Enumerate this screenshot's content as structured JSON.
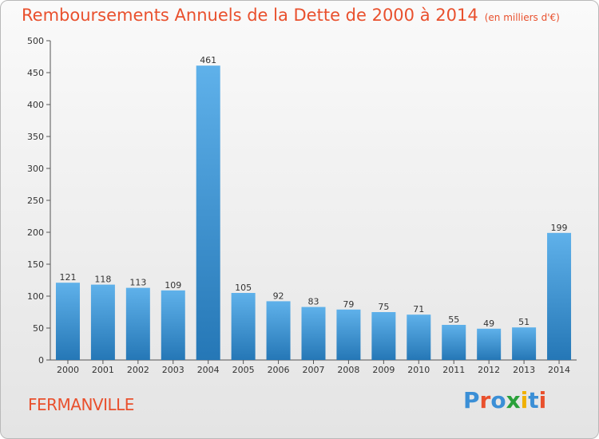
{
  "title": "Remboursements Annuels de la Dette de 2000 à 2014",
  "subtitle": "(en milliers d'€)",
  "commune": "FERMANVILLE",
  "logo_text": "Proxiti",
  "logo_colors": [
    "#3b8fd6",
    "#e9502d",
    "#3b8fd6",
    "#2aa13a",
    "#f0b000",
    "#3b8fd6",
    "#e9502d"
  ],
  "colors": {
    "title": "#e9502d",
    "bar_light": "#5fb1ea",
    "bar_dark": "#2577b6",
    "axis": "#555555"
  },
  "chart_data": {
    "type": "bar",
    "title": "Remboursements Annuels de la Dette de 2000 à 2014",
    "subtitle": "(en milliers d'€)",
    "categories": [
      "2000",
      "2001",
      "2002",
      "2003",
      "2004",
      "2005",
      "2006",
      "2007",
      "2008",
      "2009",
      "2010",
      "2011",
      "2012",
      "2013",
      "2014"
    ],
    "values": [
      121,
      118,
      113,
      109,
      461,
      105,
      92,
      83,
      79,
      75,
      71,
      55,
      49,
      51,
      199
    ],
    "ylim": [
      0,
      500
    ],
    "yticks": [
      0,
      50,
      100,
      150,
      200,
      250,
      300,
      350,
      400,
      450,
      500
    ],
    "grid": false,
    "legend": "none"
  }
}
